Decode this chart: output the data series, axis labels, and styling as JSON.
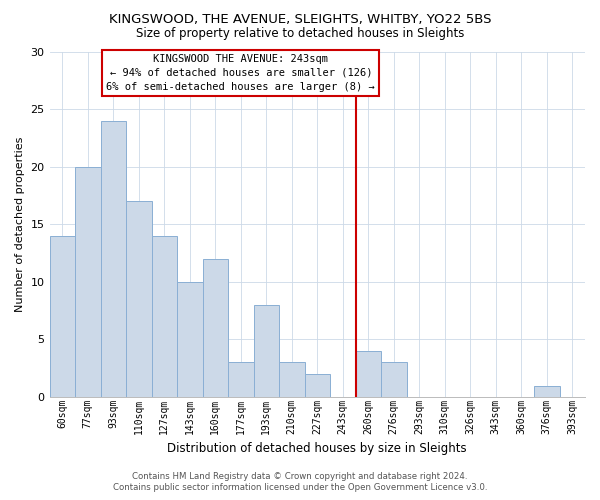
{
  "title": "KINGSWOOD, THE AVENUE, SLEIGHTS, WHITBY, YO22 5BS",
  "subtitle": "Size of property relative to detached houses in Sleights",
  "xlabel": "Distribution of detached houses by size in Sleights",
  "ylabel": "Number of detached properties",
  "bar_color": "#ccd9e8",
  "bar_edgecolor": "#8aafd4",
  "categories": [
    "60sqm",
    "77sqm",
    "93sqm",
    "110sqm",
    "127sqm",
    "143sqm",
    "160sqm",
    "177sqm",
    "193sqm",
    "210sqm",
    "227sqm",
    "243sqm",
    "260sqm",
    "276sqm",
    "293sqm",
    "310sqm",
    "326sqm",
    "343sqm",
    "360sqm",
    "376sqm",
    "393sqm"
  ],
  "values": [
    14,
    20,
    24,
    17,
    14,
    10,
    12,
    3,
    8,
    3,
    2,
    0,
    4,
    3,
    0,
    0,
    0,
    0,
    0,
    1,
    0
  ],
  "vline_color": "#cc0000",
  "annotation_title": "KINGSWOOD THE AVENUE: 243sqm",
  "annotation_line1": "← 94% of detached houses are smaller (126)",
  "annotation_line2": "6% of semi-detached houses are larger (8) →",
  "ylim": [
    0,
    30
  ],
  "yticks": [
    0,
    5,
    10,
    15,
    20,
    25,
    30
  ],
  "footer1": "Contains HM Land Registry data © Crown copyright and database right 2024.",
  "footer2": "Contains public sector information licensed under the Open Government Licence v3.0."
}
